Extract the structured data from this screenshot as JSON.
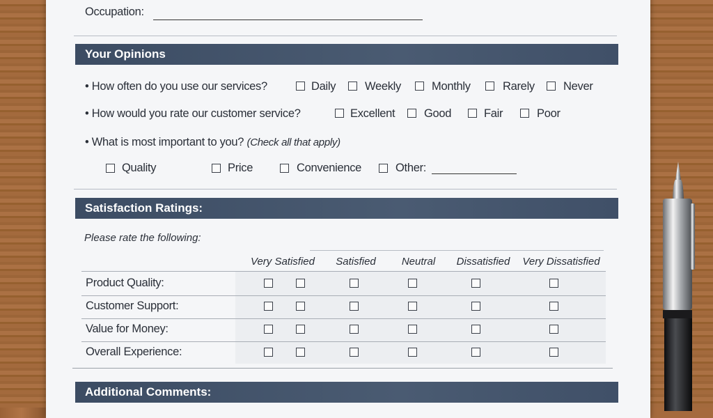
{
  "colors": {
    "header_band": "#3f5068",
    "paper": "#f5f6f8",
    "wood": "#a0673a"
  },
  "occupation": {
    "label": "Occupation:",
    "value": ""
  },
  "sections": {
    "opinions": "Your Opinions",
    "satisfaction": "Satisfaction Ratings:",
    "comments": "Additional Comments:"
  },
  "questions": [
    {
      "text": "How often do you use our services?",
      "options": [
        "Daily",
        "Weekly",
        "Monthly",
        "Rarely",
        "Never"
      ]
    },
    {
      "text": "How would you rate our customer service?",
      "options": [
        "Excellent",
        "Good",
        "Fair",
        "Poor"
      ]
    },
    {
      "text": "What is most important to you?",
      "note": "(Check all that apply)",
      "options": [
        "Quality",
        "Price",
        "Convenience",
        "Other:"
      ]
    }
  ],
  "ratings": {
    "instruction": "Please rate the following:",
    "columns": [
      "Very Satisfied",
      "Satisfied",
      "Neutral",
      "Dissatisfied",
      "Very Dissatisfied"
    ],
    "rows": [
      "Product Quality:",
      "Customer Support:",
      "Value for Money:",
      "Overall Experience:"
    ]
  },
  "pen_icon": "ballpoint-pen"
}
